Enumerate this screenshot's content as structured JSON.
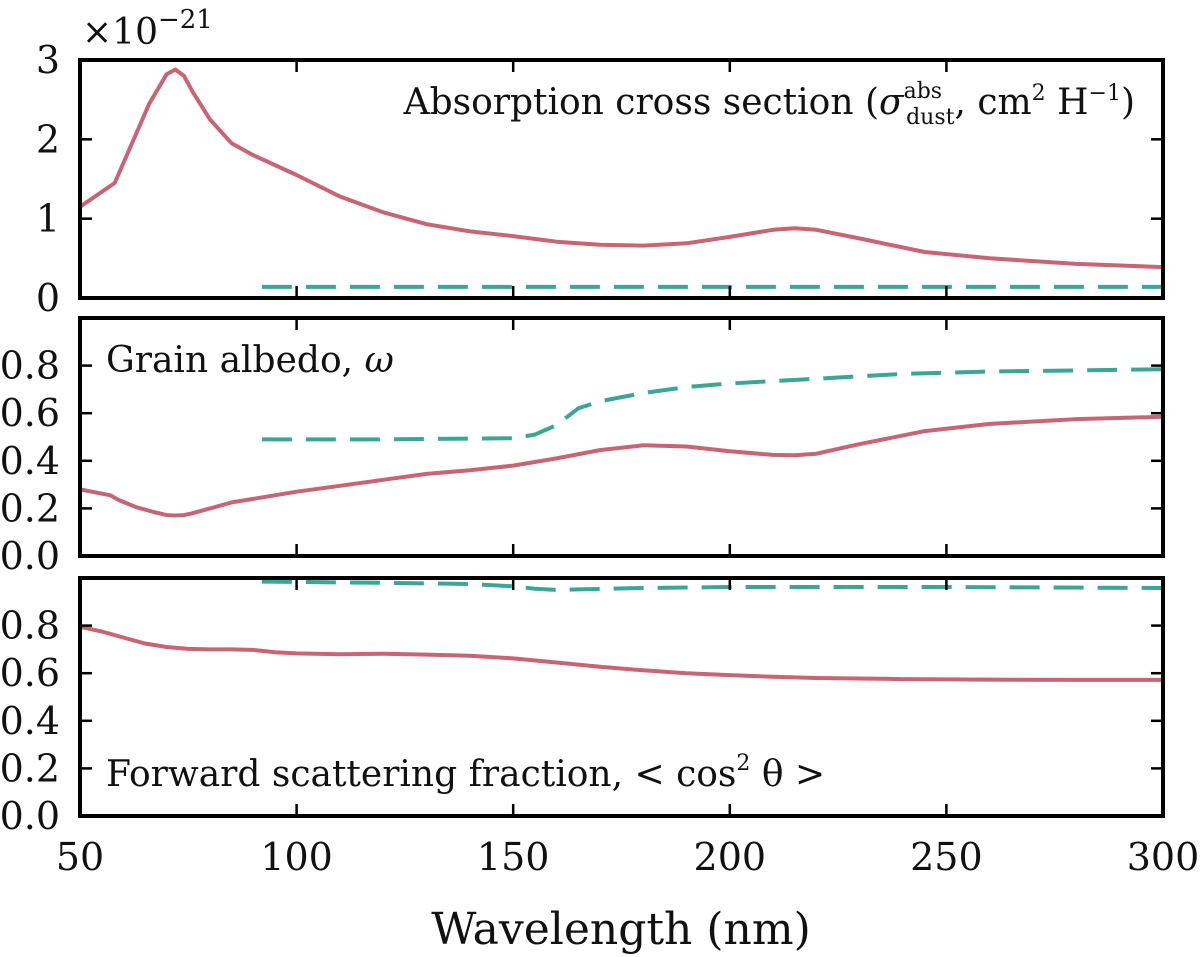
{
  "figure": {
    "xlabel": "Wavelength (nm)",
    "x_ticks": [
      50,
      100,
      150,
      200,
      250,
      300
    ],
    "x_tick_labels": [
      "50",
      "100",
      "150",
      "200",
      "250",
      "300"
    ],
    "colors": {
      "solid": "#c86474",
      "dashed": "#3aa796",
      "frame": "#000000"
    }
  },
  "chart_data": [
    {
      "type": "line",
      "title": "Absorption cross section",
      "label_prefix": "Absorption cross section (",
      "label_sigma": "σ",
      "label_sigma_sup": "abs",
      "label_sigma_sub": "dust",
      "label_mid": ", cm",
      "label_cm_exp": "2",
      "label_h": " H",
      "label_h_exp": "−1",
      "label_suffix": ")",
      "multiplier_prefix": "×10",
      "multiplier_exp": "−21",
      "xlim": [
        50,
        300
      ],
      "ylim": [
        0,
        3
      ],
      "y_ticks": [
        0,
        1,
        2,
        3
      ],
      "y_tick_labels": [
        "0",
        "1",
        "2",
        "3"
      ],
      "series": [
        {
          "name": "solid",
          "style": "solid",
          "x": [
            50,
            58,
            62,
            66,
            70,
            72,
            74,
            76,
            80,
            85,
            90,
            100,
            110,
            120,
            130,
            140,
            150,
            160,
            170,
            180,
            190,
            200,
            210,
            215,
            220,
            230,
            245,
            260,
            280,
            300
          ],
          "y": [
            1.15,
            1.45,
            1.95,
            2.45,
            2.82,
            2.88,
            2.8,
            2.6,
            2.25,
            1.95,
            1.8,
            1.55,
            1.28,
            1.08,
            0.93,
            0.84,
            0.78,
            0.71,
            0.67,
            0.66,
            0.69,
            0.77,
            0.86,
            0.88,
            0.86,
            0.75,
            0.58,
            0.5,
            0.43,
            0.39
          ]
        },
        {
          "name": "dashed",
          "style": "dashed",
          "x": [
            92,
            150,
            200,
            250,
            300
          ],
          "y": [
            0.14,
            0.14,
            0.14,
            0.14,
            0.14
          ]
        }
      ]
    },
    {
      "type": "line",
      "title": "Grain albedo",
      "label_text": "Grain albedo, ",
      "label_symbol": "ω",
      "xlim": [
        50,
        300
      ],
      "ylim": [
        0,
        1.0
      ],
      "y_ticks": [
        0.0,
        0.2,
        0.4,
        0.6,
        0.8
      ],
      "y_tick_labels": [
        "0.0",
        "0.2",
        "0.4",
        "0.6",
        "0.8"
      ],
      "series": [
        {
          "name": "solid",
          "style": "solid",
          "x": [
            50,
            57,
            59,
            63,
            67,
            70,
            72,
            74,
            76,
            80,
            85,
            90,
            100,
            110,
            120,
            130,
            140,
            150,
            160,
            170,
            180,
            190,
            200,
            210,
            215,
            220,
            230,
            245,
            260,
            280,
            300
          ],
          "y": [
            0.28,
            0.255,
            0.235,
            0.205,
            0.185,
            0.172,
            0.17,
            0.172,
            0.18,
            0.2,
            0.225,
            0.24,
            0.27,
            0.295,
            0.32,
            0.345,
            0.36,
            0.38,
            0.41,
            0.445,
            0.465,
            0.46,
            0.44,
            0.425,
            0.423,
            0.43,
            0.47,
            0.525,
            0.555,
            0.575,
            0.585
          ]
        },
        {
          "name": "dashed",
          "style": "dashed",
          "x": [
            92,
            120,
            150,
            155,
            160,
            165,
            170,
            180,
            190,
            200,
            220,
            240,
            260,
            280,
            300
          ],
          "y": [
            0.49,
            0.49,
            0.495,
            0.51,
            0.55,
            0.62,
            0.65,
            0.685,
            0.71,
            0.725,
            0.745,
            0.765,
            0.775,
            0.78,
            0.785
          ]
        }
      ]
    },
    {
      "type": "line",
      "title": "Forward scattering fraction",
      "label_text": "Forward scattering fraction, < cos",
      "label_exp": "2",
      "label_tail": " θ >",
      "xlim": [
        50,
        300
      ],
      "ylim": [
        0,
        1.0
      ],
      "y_ticks": [
        0.0,
        0.2,
        0.4,
        0.6,
        0.8
      ],
      "y_tick_labels": [
        "0.0",
        "0.2",
        "0.4",
        "0.6",
        "0.8"
      ],
      "series": [
        {
          "name": "solid",
          "style": "solid",
          "x": [
            50,
            55,
            60,
            65,
            70,
            75,
            80,
            85,
            90,
            95,
            100,
            110,
            120,
            130,
            140,
            150,
            160,
            170,
            180,
            190,
            200,
            210,
            220,
            240,
            260,
            280,
            300
          ],
          "y": [
            0.795,
            0.775,
            0.75,
            0.725,
            0.71,
            0.702,
            0.7,
            0.7,
            0.698,
            0.688,
            0.683,
            0.68,
            0.682,
            0.678,
            0.673,
            0.662,
            0.645,
            0.627,
            0.612,
            0.6,
            0.592,
            0.585,
            0.58,
            0.575,
            0.573,
            0.572,
            0.572
          ]
        },
        {
          "name": "dashed",
          "style": "dashed",
          "x": [
            92,
            120,
            140,
            150,
            155,
            160,
            165,
            180,
            200,
            250,
            300
          ],
          "y": [
            0.985,
            0.98,
            0.975,
            0.965,
            0.955,
            0.95,
            0.952,
            0.958,
            0.962,
            0.962,
            0.958
          ]
        }
      ]
    }
  ]
}
